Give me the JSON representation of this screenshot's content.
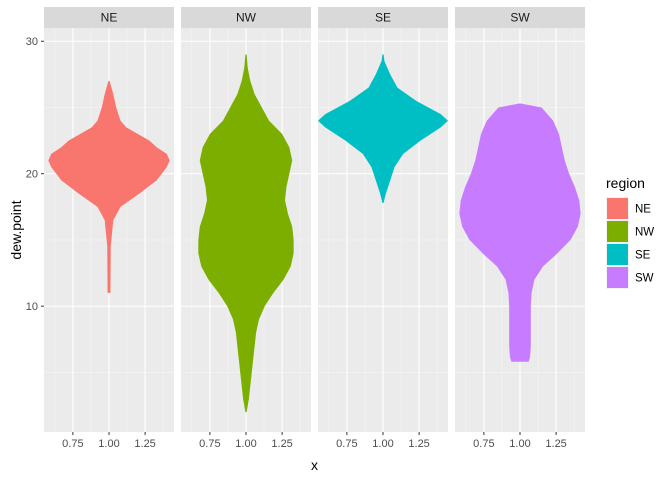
{
  "chart_data": {
    "type": "violin",
    "facet_by": "region",
    "xlabel": "x",
    "ylabel": "dew.point",
    "x_ticks": [
      "0.75",
      "1.00",
      "1.25"
    ],
    "x_tick_values": [
      0.75,
      1.0,
      1.25
    ],
    "xlim": [
      0.55,
      1.45
    ],
    "y_ticks": [
      "10",
      "20",
      "30"
    ],
    "y_tick_values": [
      10,
      20,
      30
    ],
    "ylim": [
      0.5,
      31
    ],
    "grid": true,
    "legend": {
      "title": "region",
      "position": "right",
      "entries": [
        "NE",
        "NW",
        "SE",
        "SW"
      ]
    },
    "panels": [
      {
        "name": "NE",
        "color": "#F8766D",
        "x_center": 1.0,
        "y_range": [
          11,
          27
        ],
        "profile": [
          [
            11,
            0.01
          ],
          [
            14.5,
            0.012
          ],
          [
            16.5,
            0.03
          ],
          [
            17.5,
            0.08
          ],
          [
            18.5,
            0.21
          ],
          [
            19.5,
            0.33
          ],
          [
            20.5,
            0.4
          ],
          [
            21.0,
            0.42
          ],
          [
            21.5,
            0.4
          ],
          [
            22.0,
            0.33
          ],
          [
            22.5,
            0.28
          ],
          [
            23.0,
            0.2
          ],
          [
            23.5,
            0.12
          ],
          [
            24.0,
            0.08
          ],
          [
            25.0,
            0.05
          ],
          [
            26.0,
            0.03
          ],
          [
            27,
            0.0
          ]
        ]
      },
      {
        "name": "NW",
        "color": "#7CAE00",
        "x_center": 1.0,
        "y_range": [
          2,
          29
        ],
        "profile": [
          [
            2,
            0.0
          ],
          [
            3,
            0.02
          ],
          [
            4,
            0.03
          ],
          [
            5,
            0.04
          ],
          [
            6,
            0.05
          ],
          [
            7,
            0.06
          ],
          [
            8,
            0.07
          ],
          [
            9,
            0.09
          ],
          [
            10,
            0.13
          ],
          [
            11,
            0.19
          ],
          [
            12,
            0.26
          ],
          [
            13,
            0.31
          ],
          [
            14,
            0.33
          ],
          [
            15,
            0.33
          ],
          [
            16,
            0.32
          ],
          [
            17,
            0.29
          ],
          [
            18,
            0.27
          ],
          [
            19,
            0.28
          ],
          [
            20,
            0.3
          ],
          [
            21,
            0.32
          ],
          [
            22,
            0.3
          ],
          [
            23,
            0.25
          ],
          [
            24,
            0.16
          ],
          [
            25,
            0.11
          ],
          [
            26,
            0.06
          ],
          [
            27,
            0.03
          ],
          [
            28,
            0.012
          ],
          [
            29,
            0.0
          ]
        ]
      },
      {
        "name": "SE",
        "color": "#00BFC4",
        "x_center": 1.0,
        "y_range": [
          17.8,
          29
        ],
        "profile": [
          [
            17.8,
            0.0
          ],
          [
            18.5,
            0.02
          ],
          [
            19.5,
            0.05
          ],
          [
            20.5,
            0.08
          ],
          [
            21.5,
            0.14
          ],
          [
            22.5,
            0.26
          ],
          [
            23.5,
            0.4
          ],
          [
            24.0,
            0.45
          ],
          [
            24.5,
            0.4
          ],
          [
            25.5,
            0.23
          ],
          [
            26.5,
            0.1
          ],
          [
            27.5,
            0.05
          ],
          [
            28.5,
            0.01
          ],
          [
            29,
            0.0
          ]
        ]
      },
      {
        "name": "SW",
        "color": "#C77CFF",
        "x_center": 1.0,
        "y_range": [
          5.8,
          25.3
        ],
        "profile": [
          [
            5.8,
            0.06
          ],
          [
            6.2,
            0.07
          ],
          [
            7.0,
            0.075
          ],
          [
            8.0,
            0.075
          ],
          [
            9.0,
            0.075
          ],
          [
            10.0,
            0.075
          ],
          [
            11.0,
            0.08
          ],
          [
            12.0,
            0.1
          ],
          [
            13.0,
            0.16
          ],
          [
            14.0,
            0.26
          ],
          [
            15.0,
            0.35
          ],
          [
            16.0,
            0.4
          ],
          [
            17.0,
            0.42
          ],
          [
            18.0,
            0.41
          ],
          [
            19.0,
            0.38
          ],
          [
            20.0,
            0.34
          ],
          [
            21.0,
            0.31
          ],
          [
            22.0,
            0.29
          ],
          [
            23.0,
            0.27
          ],
          [
            24.0,
            0.23
          ],
          [
            25.0,
            0.15
          ],
          [
            25.3,
            0.0
          ]
        ]
      }
    ]
  }
}
